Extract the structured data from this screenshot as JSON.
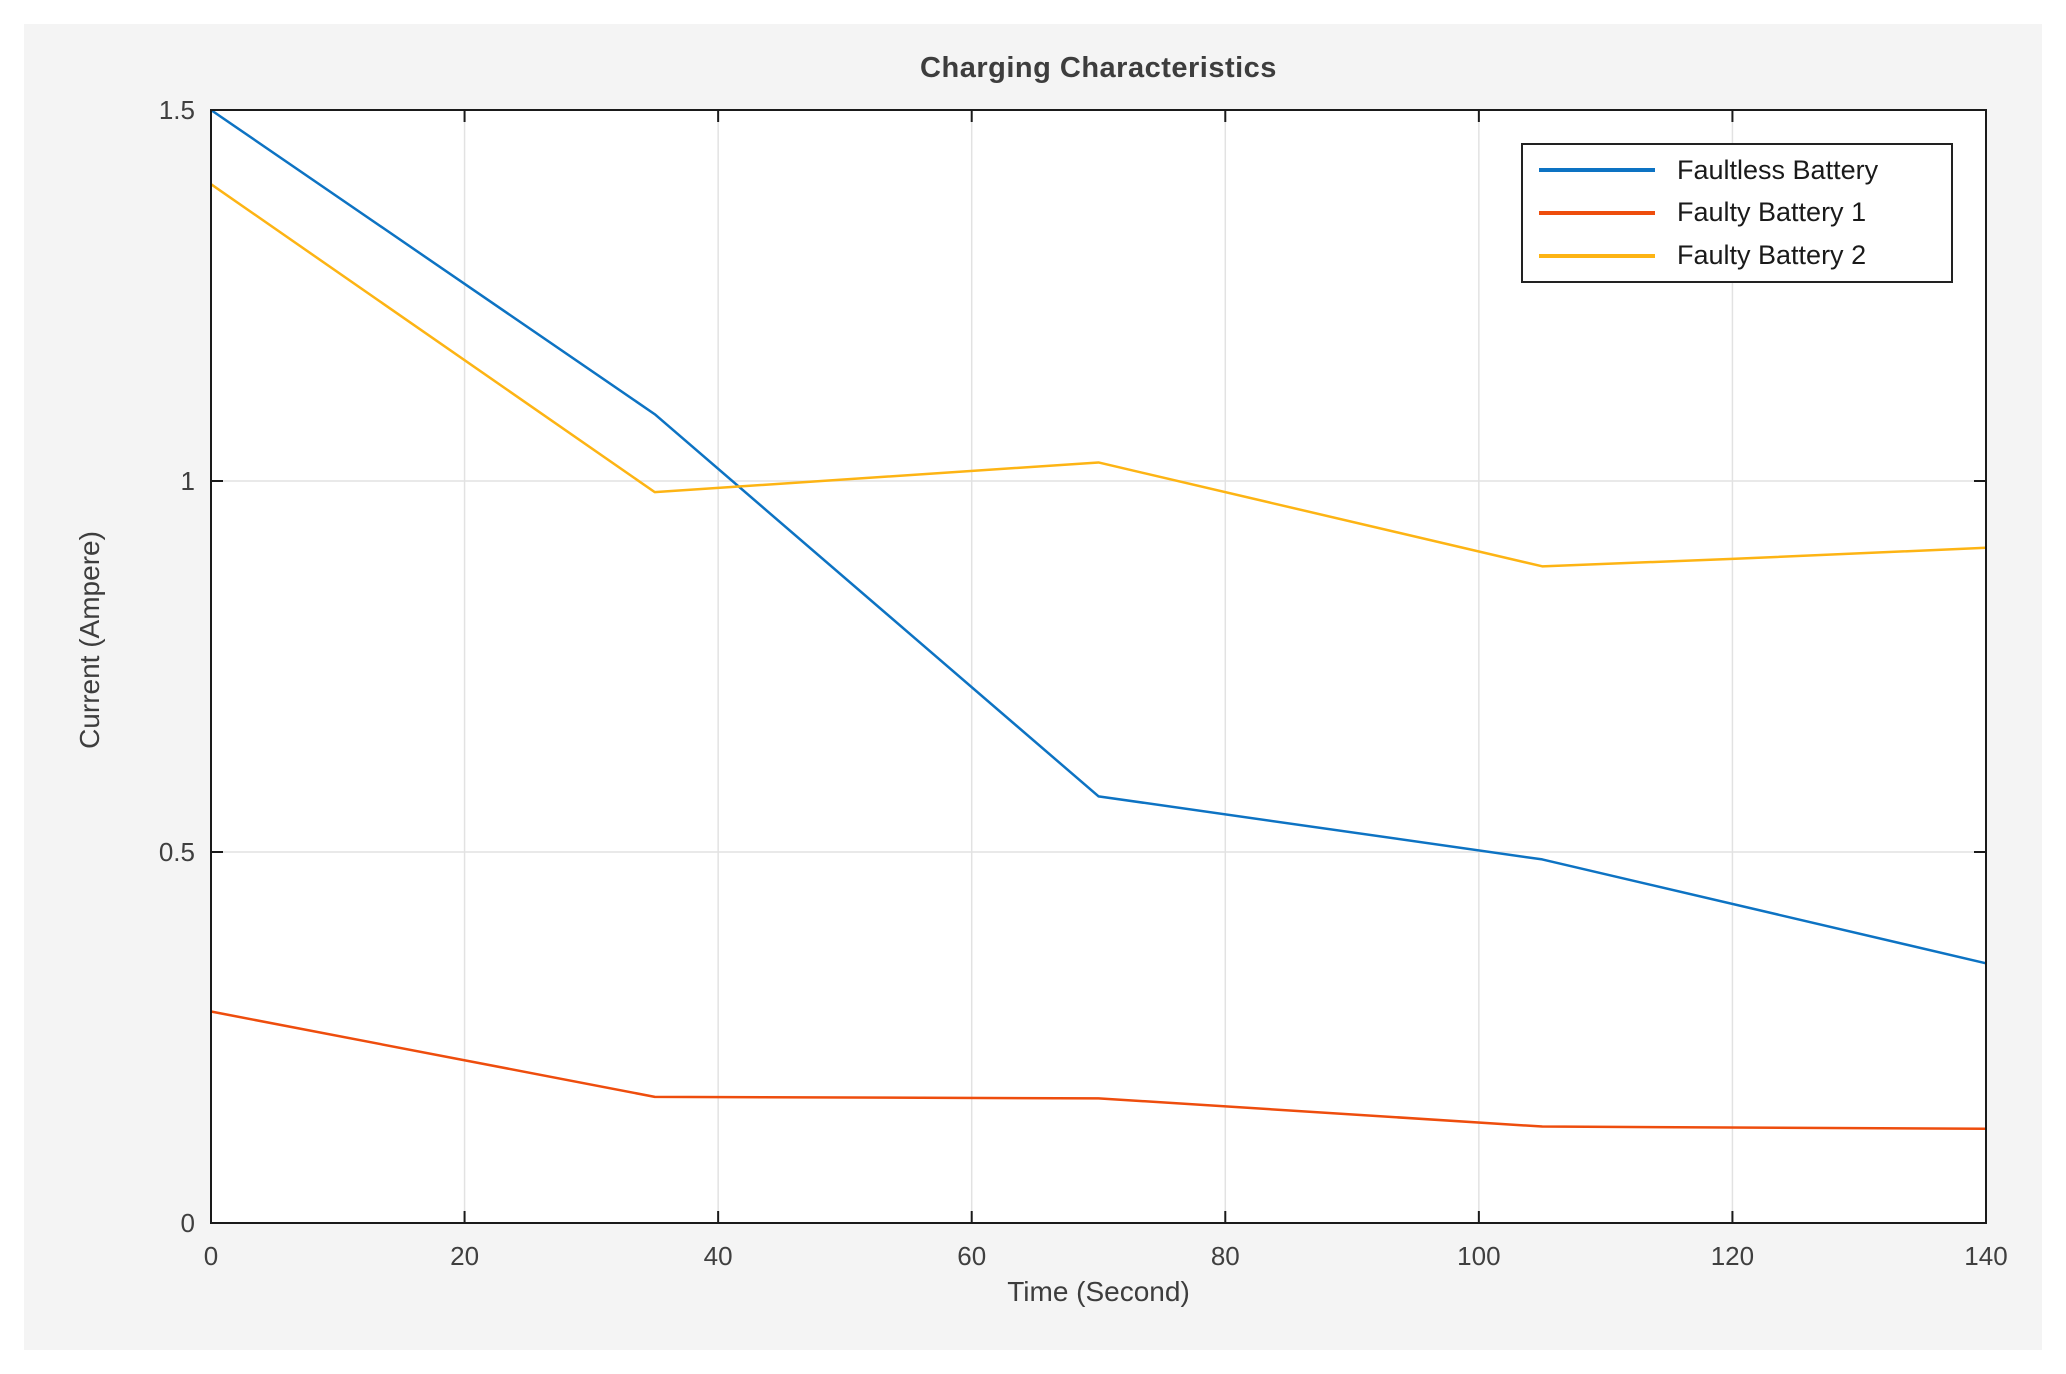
{
  "chart_data": {
    "type": "line",
    "title": "Charging Characteristics",
    "xlabel": "Time (Second)",
    "ylabel": "Current (Ampere)",
    "xlim": [
      0,
      140
    ],
    "ylim": [
      0,
      1.5
    ],
    "xticks": [
      0,
      20,
      40,
      60,
      80,
      100,
      120,
      140
    ],
    "xtick_labels": [
      "0",
      "20",
      "40",
      "60",
      "80",
      "100",
      "120",
      "140"
    ],
    "yticks": [
      0,
      0.5,
      1,
      1.5
    ],
    "ytick_labels": [
      "0",
      "0.5",
      "1",
      "1.5"
    ],
    "grid": true,
    "legend_position": "top-right",
    "series": [
      {
        "name": "Faultless Battery",
        "color": "#0d73c3",
        "x": [
          0,
          35,
          70,
          105,
          140
        ],
        "values": [
          1.5,
          1.09,
          0.575,
          0.49,
          0.35
        ]
      },
      {
        "name": "Faulty Battery 1",
        "color": "#ee4d0d",
        "x": [
          0,
          35,
          70,
          105,
          140
        ],
        "values": [
          0.285,
          0.17,
          0.168,
          0.13,
          0.127
        ]
      },
      {
        "name": "Faulty Battery 2",
        "color": "#fdb414",
        "x": [
          0,
          35,
          70,
          105,
          120,
          140
        ],
        "values": [
          1.4,
          0.985,
          1.025,
          0.885,
          0.895,
          0.91
        ]
      }
    ],
    "colors": {
      "figure_bg": "#f4f4f4",
      "plot_bg": "#ffffff",
      "grid": "#e2e2e2",
      "axis": "#1a1a1a",
      "text": "#3d3d3d"
    }
  }
}
